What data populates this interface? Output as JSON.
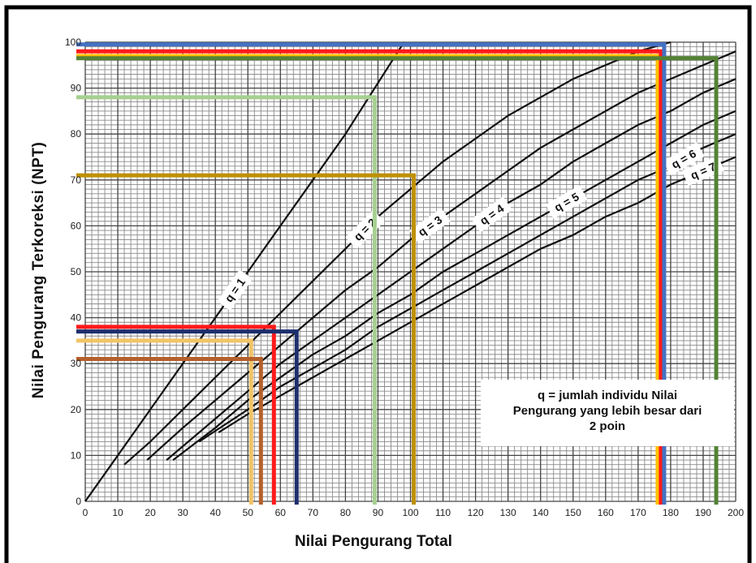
{
  "chart_data": {
    "type": "line",
    "title": "",
    "xlabel": "Nilai Pengurang Total",
    "ylabel": "Nilai Pengurang Terkoreksi (NPT)",
    "xlim": [
      0,
      200
    ],
    "ylim": [
      0,
      100
    ],
    "x_ticks": [
      0,
      10,
      20,
      30,
      40,
      50,
      60,
      70,
      80,
      90,
      100,
      110,
      120,
      130,
      140,
      150,
      160,
      170,
      180,
      190,
      200
    ],
    "y_ticks": [
      0,
      10,
      20,
      30,
      40,
      50,
      60,
      70,
      80,
      90,
      100
    ],
    "grid": true,
    "legend_text": [
      "q = jumlah individu Nilai",
      "Pengurang yang lebih besar dari",
      "2 poin"
    ],
    "series": [
      {
        "name": "q = 1",
        "label": "q = 1",
        "x": [
          0,
          20,
          40,
          60,
          80,
          98
        ],
        "y": [
          0,
          20,
          40,
          60,
          80,
          100
        ]
      },
      {
        "name": "q = 2",
        "label": "q = 2",
        "x": [
          12,
          20,
          30,
          40,
          50,
          60,
          70,
          80,
          90,
          100,
          110,
          120,
          130,
          140,
          150,
          160,
          170,
          180
        ],
        "y": [
          8,
          13,
          20,
          27,
          34,
          41,
          48,
          55,
          62,
          68,
          74,
          79,
          84,
          88,
          92,
          95,
          98,
          100
        ]
      },
      {
        "name": "q = 3",
        "label": "q = 3",
        "x": [
          19,
          30,
          40,
          50,
          60,
          70,
          80,
          90,
          100,
          110,
          120,
          130,
          140,
          150,
          160,
          170,
          180,
          190,
          200
        ],
        "y": [
          9,
          16,
          22,
          28,
          34,
          40,
          46,
          51,
          57,
          62,
          67,
          72,
          77,
          81,
          85,
          89,
          92,
          95,
          98
        ]
      },
      {
        "name": "q = 4",
        "label": "q = 4",
        "x": [
          25,
          40,
          50,
          60,
          70,
          80,
          90,
          100,
          110,
          120,
          130,
          140,
          150,
          160,
          170,
          180,
          190,
          200
        ],
        "y": [
          9,
          18,
          24,
          30,
          35,
          40,
          45,
          50,
          55,
          60,
          65,
          69,
          74,
          78,
          82,
          85,
          89,
          92
        ]
      },
      {
        "name": "q = 5",
        "label": "q = 5",
        "x": [
          27,
          40,
          50,
          60,
          70,
          80,
          90,
          100,
          110,
          120,
          130,
          140,
          150,
          160,
          170,
          180,
          190,
          200
        ],
        "y": [
          9,
          16,
          22,
          27,
          32,
          36,
          41,
          45,
          50,
          54,
          58,
          62,
          66,
          70,
          74,
          78,
          82,
          85
        ]
      },
      {
        "name": "q = 6",
        "label": "q = 6",
        "x": [
          35,
          50,
          60,
          70,
          80,
          90,
          100,
          110,
          120,
          130,
          140,
          150,
          160,
          170,
          180,
          190,
          200
        ],
        "y": [
          13,
          20,
          25,
          29,
          33,
          38,
          42,
          46,
          50,
          54,
          58,
          62,
          66,
          70,
          73,
          77,
          80
        ]
      },
      {
        "name": "q = 7",
        "label": "q = 7",
        "x": [
          41,
          50,
          60,
          70,
          80,
          90,
          100,
          110,
          120,
          130,
          140,
          150,
          160,
          170,
          180,
          190,
          200
        ],
        "y": [
          15,
          19,
          23,
          27,
          31,
          35,
          39,
          43,
          47,
          51,
          55,
          58,
          62,
          65,
          69,
          72,
          75
        ]
      }
    ],
    "guides": [
      {
        "x": 51,
        "y": 35,
        "color": "#f2c468"
      },
      {
        "x": 54,
        "y": 31,
        "color": "#b5602c"
      },
      {
        "x": 58,
        "y": 38,
        "color": "#ff1a1a"
      },
      {
        "x": 65,
        "y": 37,
        "color": "#1d2f6e"
      },
      {
        "x": 89,
        "y": 88,
        "color": "#a6d08f"
      },
      {
        "x": 101,
        "y": 71,
        "color": "#bf9000"
      },
      {
        "x": 176,
        "y": 97,
        "color": "#ffc000"
      },
      {
        "x": 177,
        "y": 98,
        "color": "#ff1a1a"
      },
      {
        "x": 178,
        "y": 99.5,
        "color": "#4472c4"
      },
      {
        "x": 194,
        "y": 96.5,
        "color": "#548235"
      }
    ]
  }
}
